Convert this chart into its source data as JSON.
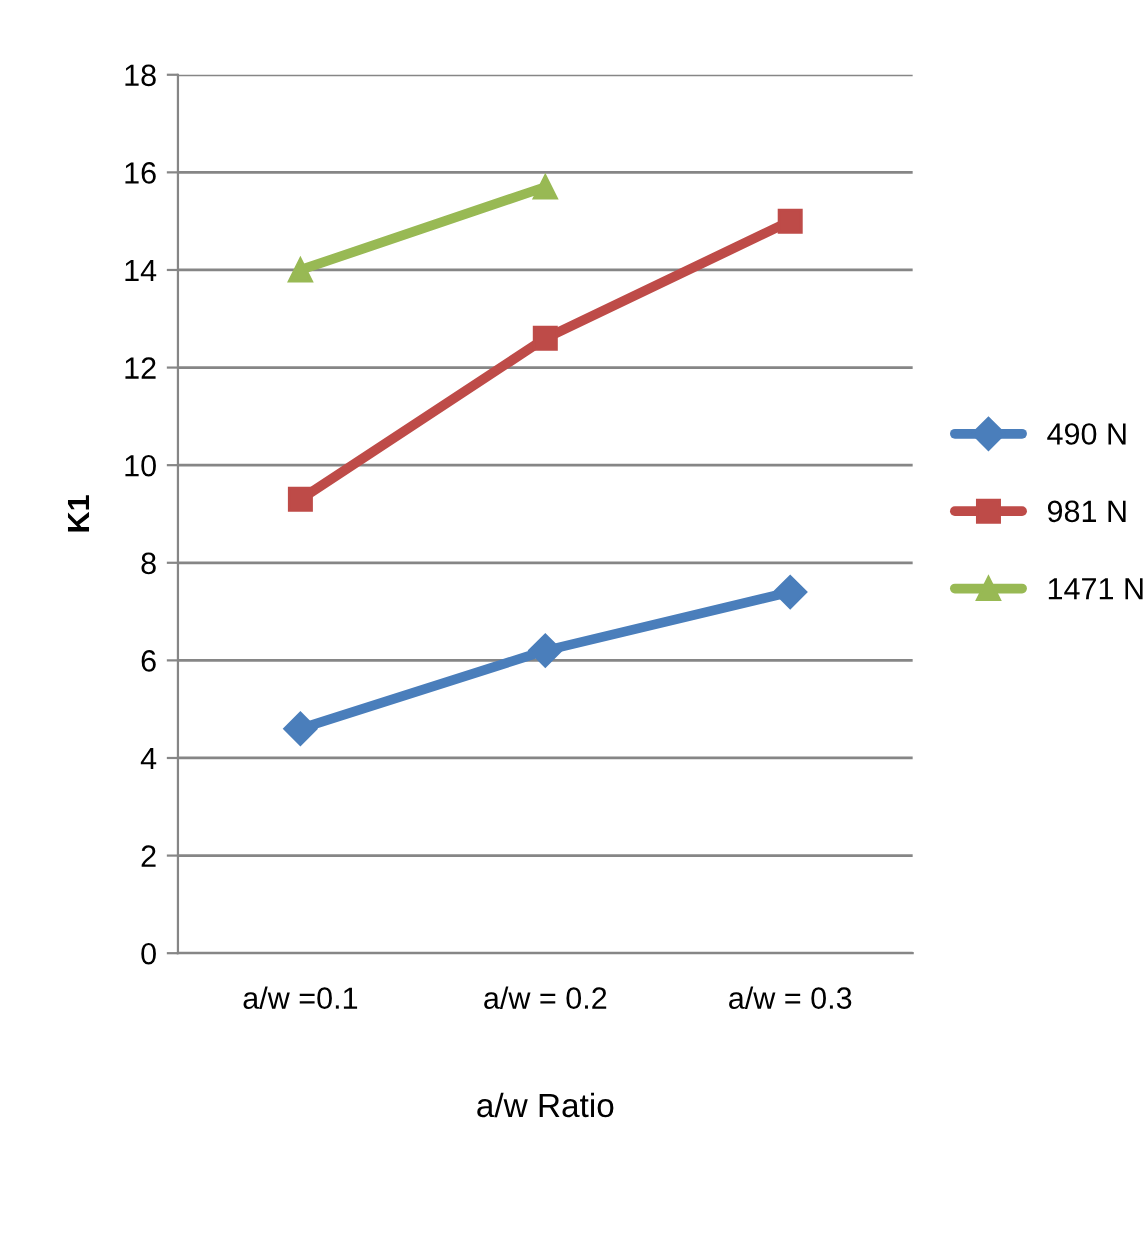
{
  "chart_data": {
    "type": "line",
    "xlabel": "a/w Ratio",
    "ylabel": "K1",
    "categories": [
      "a/w =0.1",
      "a/w = 0.2",
      "a/w = 0.3"
    ],
    "series": [
      {
        "name": "490 N",
        "color": "#4a7ebb",
        "values": [
          4.6,
          6.2,
          7.4
        ],
        "marker": "diamond"
      },
      {
        "name": "981 N",
        "color": "#be4b48",
        "values": [
          9.3,
          12.6,
          15.0
        ],
        "marker": "square"
      },
      {
        "name": "1471 N",
        "color": "#98b954",
        "values": [
          14.0,
          15.7,
          null
        ],
        "marker": "triangle"
      }
    ],
    "ylim": [
      0,
      18
    ],
    "yticks": [
      0,
      2,
      4,
      6,
      8,
      10,
      12,
      14,
      16,
      18
    ],
    "grid": "y",
    "legend": "right",
    "line_style": "solid"
  }
}
